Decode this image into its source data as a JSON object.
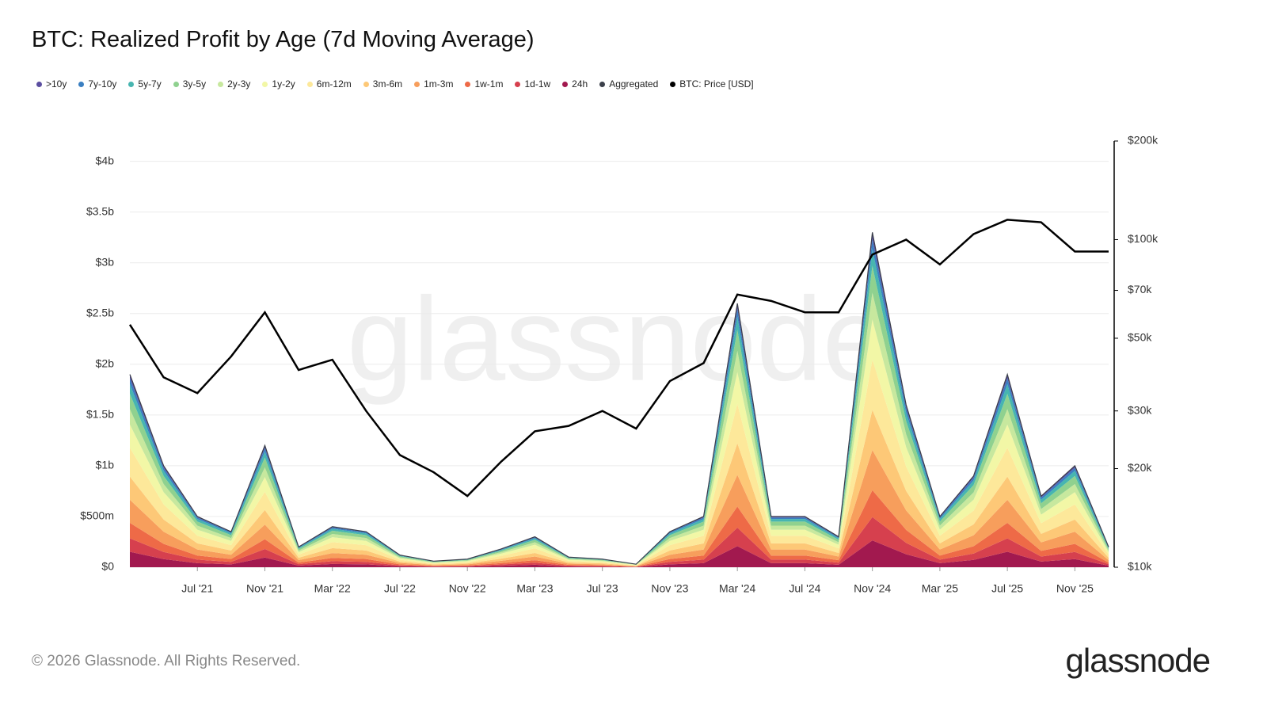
{
  "chart_data": {
    "type": "stacked-area",
    "title": "BTC: Realized Profit by Age (7d Moving Average)",
    "watermark": "glassnode",
    "footer": "© 2026 Glassnode. All Rights Reserved.",
    "logo": "glassnode",
    "x": [
      "2021-03",
      "2021-05",
      "2021-07",
      "2021-09",
      "2021-11",
      "2022-01",
      "2022-03",
      "2022-05",
      "2022-07",
      "2022-09",
      "2022-11",
      "2023-01",
      "2023-03",
      "2023-05",
      "2023-07",
      "2023-09",
      "2023-11",
      "2024-01",
      "2024-03",
      "2024-05",
      "2024-07",
      "2024-09",
      "2024-11",
      "2025-01",
      "2025-03",
      "2025-05",
      "2025-07",
      "2025-09",
      "2025-11",
      "2026-01"
    ],
    "xticks": [
      {
        "value": "2021-07",
        "label": "Jul '21"
      },
      {
        "value": "2021-11",
        "label": "Nov '21"
      },
      {
        "value": "2022-03",
        "label": "Mar '22"
      },
      {
        "value": "2022-07",
        "label": "Jul '22"
      },
      {
        "value": "2022-11",
        "label": "Nov '22"
      },
      {
        "value": "2023-03",
        "label": "Mar '23"
      },
      {
        "value": "2023-07",
        "label": "Jul '23"
      },
      {
        "value": "2023-11",
        "label": "Nov '23"
      },
      {
        "value": "2024-03",
        "label": "Mar '24"
      },
      {
        "value": "2024-07",
        "label": "Jul '24"
      },
      {
        "value": "2024-11",
        "label": "Nov '24"
      },
      {
        "value": "2025-03",
        "label": "Mar '25"
      },
      {
        "value": "2025-07",
        "label": "Jul '25"
      },
      {
        "value": "2025-11",
        "label": "Nov '25"
      }
    ],
    "ylim": [
      0,
      4.2
    ],
    "yticks": [
      {
        "value": 0,
        "label": "$0"
      },
      {
        "value": 0.5,
        "label": "$500m"
      },
      {
        "value": 1,
        "label": "$1b"
      },
      {
        "value": 1.5,
        "label": "$1.5b"
      },
      {
        "value": 2,
        "label": "$2b"
      },
      {
        "value": 2.5,
        "label": "$2.5b"
      },
      {
        "value": 3,
        "label": "$3b"
      },
      {
        "value": 3.5,
        "label": "$3.5b"
      },
      {
        "value": 4,
        "label": "$4b"
      }
    ],
    "y2lim": [
      10000,
      200000
    ],
    "y2scale": "log",
    "y2ticks": [
      {
        "value": 10000,
        "label": "$10k"
      },
      {
        "value": 20000,
        "label": "$20k"
      },
      {
        "value": 30000,
        "label": "$30k"
      },
      {
        "value": 50000,
        "label": "$50k"
      },
      {
        "value": 70000,
        "label": "$70k"
      },
      {
        "value": 100000,
        "label": "$100k"
      },
      {
        "value": 200000,
        "label": "$200k"
      }
    ],
    "grid": true,
    "series": [
      {
        "name": ">10y",
        "color": "#5b4ea0",
        "type": "area",
        "values": [
          0.038,
          0.02,
          0.01,
          0.007,
          0.024,
          0.004,
          0.008,
          0.007,
          0.002,
          0.001,
          0.002,
          0.004,
          0.006,
          0.002,
          0.002,
          0.001,
          0.007,
          0.01,
          0.052,
          0.01,
          0.01,
          0.006,
          0.066,
          0.032,
          0.01,
          0.018,
          0.038,
          0.014,
          0.02,
          0.004
        ]
      },
      {
        "name": "7y-10y",
        "color": "#3a7fc1",
        "type": "area",
        "values": [
          0.057,
          0.03,
          0.015,
          0.011,
          0.036,
          0.006,
          0.012,
          0.011,
          0.004,
          0.002,
          0.002,
          0.005,
          0.009,
          0.003,
          0.002,
          0.001,
          0.011,
          0.015,
          0.078,
          0.015,
          0.015,
          0.009,
          0.099,
          0.048,
          0.015,
          0.027,
          0.057,
          0.021,
          0.03,
          0.006
        ]
      },
      {
        "name": "5y-7y",
        "color": "#47b5b0",
        "type": "area",
        "values": [
          0.095,
          0.05,
          0.025,
          0.018,
          0.06,
          0.01,
          0.02,
          0.018,
          0.006,
          0.003,
          0.004,
          0.009,
          0.015,
          0.005,
          0.004,
          0.002,
          0.018,
          0.025,
          0.13,
          0.025,
          0.025,
          0.015,
          0.165,
          0.08,
          0.025,
          0.045,
          0.095,
          0.035,
          0.05,
          0.01
        ]
      },
      {
        "name": "3y-5y",
        "color": "#8fd18f",
        "type": "area",
        "values": [
          0.152,
          0.08,
          0.04,
          0.028,
          0.096,
          0.016,
          0.032,
          0.028,
          0.01,
          0.005,
          0.006,
          0.014,
          0.024,
          0.008,
          0.006,
          0.002,
          0.028,
          0.04,
          0.208,
          0.04,
          0.04,
          0.024,
          0.264,
          0.128,
          0.04,
          0.072,
          0.152,
          0.056,
          0.08,
          0.016
        ]
      },
      {
        "name": "2y-3y",
        "color": "#c7e89e",
        "type": "area",
        "values": [
          0.152,
          0.08,
          0.04,
          0.028,
          0.096,
          0.016,
          0.032,
          0.028,
          0.01,
          0.005,
          0.006,
          0.014,
          0.024,
          0.008,
          0.006,
          0.002,
          0.028,
          0.04,
          0.208,
          0.04,
          0.04,
          0.024,
          0.264,
          0.128,
          0.04,
          0.072,
          0.152,
          0.056,
          0.08,
          0.016
        ]
      },
      {
        "name": "1y-2y",
        "color": "#f2f7a6",
        "type": "area",
        "values": [
          0.228,
          0.12,
          0.06,
          0.042,
          0.144,
          0.024,
          0.048,
          0.042,
          0.014,
          0.007,
          0.01,
          0.022,
          0.036,
          0.012,
          0.01,
          0.004,
          0.042,
          0.06,
          0.312,
          0.06,
          0.06,
          0.036,
          0.396,
          0.192,
          0.06,
          0.108,
          0.228,
          0.084,
          0.12,
          0.024
        ]
      },
      {
        "name": "6m-12m",
        "color": "#fde89a",
        "type": "area",
        "values": [
          0.285,
          0.15,
          0.075,
          0.053,
          0.18,
          0.03,
          0.06,
          0.053,
          0.018,
          0.009,
          0.012,
          0.027,
          0.045,
          0.015,
          0.012,
          0.005,
          0.053,
          0.075,
          0.39,
          0.075,
          0.075,
          0.045,
          0.495,
          0.24,
          0.075,
          0.135,
          0.285,
          0.105,
          0.15,
          0.03
        ]
      },
      {
        "name": "3m-6m",
        "color": "#fdc877",
        "type": "area",
        "values": [
          0.228,
          0.12,
          0.06,
          0.042,
          0.144,
          0.024,
          0.048,
          0.042,
          0.014,
          0.007,
          0.01,
          0.022,
          0.036,
          0.012,
          0.01,
          0.004,
          0.042,
          0.06,
          0.312,
          0.06,
          0.06,
          0.036,
          0.396,
          0.192,
          0.06,
          0.108,
          0.228,
          0.084,
          0.12,
          0.024
        ]
      },
      {
        "name": "1m-3m",
        "color": "#f79e5c",
        "type": "area",
        "values": [
          0.228,
          0.12,
          0.06,
          0.042,
          0.144,
          0.024,
          0.048,
          0.042,
          0.014,
          0.007,
          0.01,
          0.022,
          0.036,
          0.012,
          0.01,
          0.004,
          0.042,
          0.06,
          0.312,
          0.06,
          0.06,
          0.036,
          0.396,
          0.192,
          0.06,
          0.108,
          0.228,
          0.084,
          0.12,
          0.024
        ]
      },
      {
        "name": "1w-1m",
        "color": "#ee6a47",
        "type": "area",
        "values": [
          0.152,
          0.08,
          0.04,
          0.028,
          0.096,
          0.016,
          0.032,
          0.028,
          0.01,
          0.005,
          0.006,
          0.014,
          0.024,
          0.008,
          0.006,
          0.002,
          0.028,
          0.04,
          0.208,
          0.04,
          0.04,
          0.024,
          0.264,
          0.128,
          0.04,
          0.072,
          0.152,
          0.056,
          0.08,
          0.016
        ]
      },
      {
        "name": "1d-1w",
        "color": "#d6404e",
        "type": "area",
        "values": [
          0.133,
          0.07,
          0.035,
          0.025,
          0.084,
          0.014,
          0.028,
          0.025,
          0.008,
          0.004,
          0.006,
          0.013,
          0.021,
          0.007,
          0.006,
          0.002,
          0.025,
          0.035,
          0.182,
          0.035,
          0.035,
          0.021,
          0.231,
          0.112,
          0.035,
          0.063,
          0.133,
          0.049,
          0.07,
          0.014
        ]
      },
      {
        "name": "24h",
        "color": "#a2194f",
        "type": "area",
        "values": [
          0.152,
          0.08,
          0.04,
          0.028,
          0.096,
          0.016,
          0.032,
          0.028,
          0.01,
          0.005,
          0.006,
          0.014,
          0.024,
          0.008,
          0.006,
          0.002,
          0.028,
          0.04,
          0.208,
          0.04,
          0.04,
          0.024,
          0.264,
          0.128,
          0.04,
          0.072,
          0.152,
          0.056,
          0.08,
          0.016
        ]
      },
      {
        "name": "Aggregated",
        "color": "#3b3f4a",
        "type": "line",
        "values": [
          1.9,
          1.0,
          0.5,
          0.35,
          1.2,
          0.2,
          0.4,
          0.35,
          0.12,
          0.06,
          0.08,
          0.18,
          0.3,
          0.1,
          0.08,
          0.03,
          0.35,
          0.5,
          2.6,
          0.5,
          0.5,
          0.3,
          3.3,
          1.6,
          0.5,
          0.9,
          1.9,
          0.7,
          1.0,
          0.2
        ]
      },
      {
        "name": "BTC: Price [USD]",
        "color": "#000000",
        "type": "line",
        "axis": "y2",
        "values": [
          55000,
          38000,
          34000,
          44000,
          60000,
          40000,
          43000,
          30000,
          22000,
          19500,
          16500,
          21000,
          26000,
          27000,
          30000,
          26500,
          37000,
          42000,
          68000,
          65000,
          60000,
          60000,
          90000,
          100000,
          84000,
          104000,
          115000,
          113000,
          92000,
          92000
        ]
      }
    ]
  }
}
